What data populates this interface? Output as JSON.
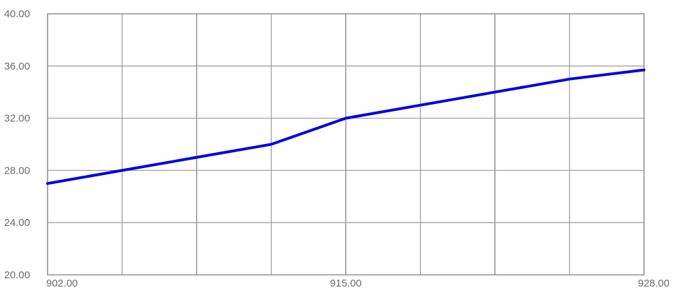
{
  "chart_data": {
    "type": "line",
    "title": "",
    "xlabel": "",
    "ylabel": "",
    "xlim": [
      902,
      928
    ],
    "ylim": [
      20,
      40
    ],
    "x_tick_values": [
      902,
      915,
      928
    ],
    "x_tick_labels": [
      "902.00",
      "915.00",
      "928.00"
    ],
    "y_tick_values": [
      20,
      24,
      28,
      32,
      36,
      40
    ],
    "y_tick_labels": [
      "20.00",
      "24.00",
      "28.00",
      "32.00",
      "36.00",
      "40.00"
    ],
    "x_gridlines": [
      902,
      905.25,
      908.5,
      911.75,
      915,
      918.25,
      921.5,
      924.75,
      928
    ],
    "grid": true,
    "legend": "none",
    "colors": {
      "series": "#0000e0",
      "grid": "#a0a0a0",
      "tick_text": "#6a6a6a"
    },
    "series": [
      {
        "x": [
          902,
          905.25,
          908.5,
          911.75,
          915,
          918.25,
          921.5,
          924.75,
          928
        ],
        "values": [
          27.0,
          28.0,
          29.0,
          30.0,
          32.0,
          33.0,
          34.0,
          35.0,
          35.7
        ]
      }
    ]
  }
}
